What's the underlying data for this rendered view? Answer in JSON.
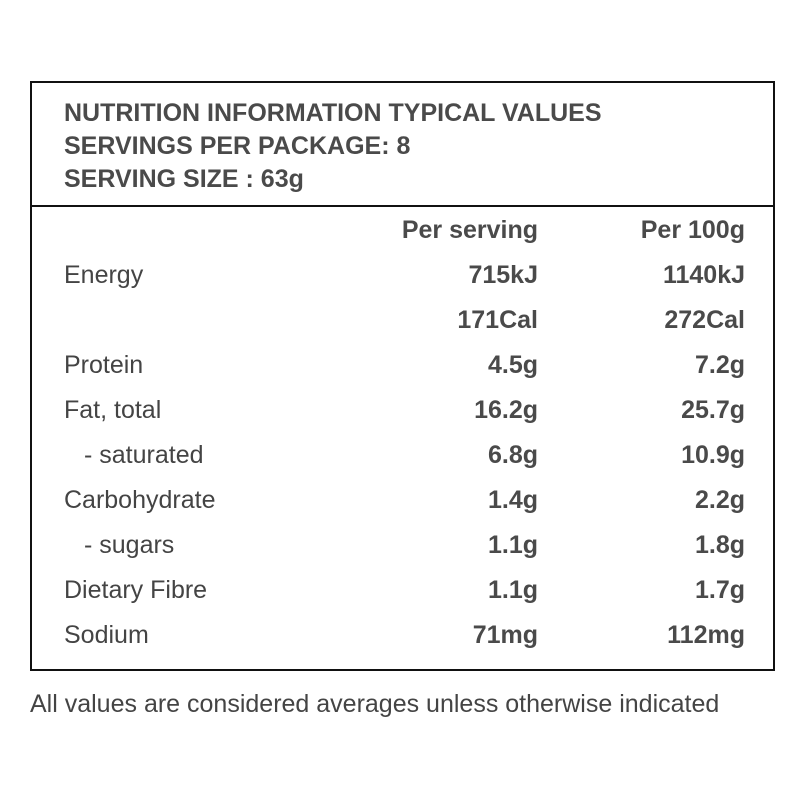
{
  "header": {
    "title": "NUTRITION INFORMATION TYPICAL VALUES",
    "servings": "SERVINGS PER PACKAGE: 8",
    "serving_size": "SERVING SIZE : 63g"
  },
  "columns": {
    "per_serving": "Per serving",
    "per_100g": "Per 100g"
  },
  "rows": [
    {
      "label": "Energy",
      "per_serving": "715kJ",
      "per_100g": "1140kJ"
    },
    {
      "label": "",
      "per_serving": "171Cal",
      "per_100g": "272Cal"
    },
    {
      "label": "Protein",
      "per_serving": "4.5g",
      "per_100g": "7.2g"
    },
    {
      "label": "Fat, total",
      "per_serving": "16.2g",
      "per_100g": "25.7g"
    },
    {
      "label": "- saturated",
      "per_serving": "6.8g",
      "per_100g": "10.9g"
    },
    {
      "label": "Carbohydrate",
      "per_serving": "1.4g",
      "per_100g": "2.2g"
    },
    {
      "label": "- sugars",
      "per_serving": "1.1g",
      "per_100g": "1.8g"
    },
    {
      "label": "Dietary Fibre",
      "per_serving": "1.1g",
      "per_100g": "1.7g"
    },
    {
      "label": "Sodium",
      "per_serving": "71mg",
      "per_100g": "112mg"
    }
  ],
  "footer": "All values are considered averages unless otherwise indicated"
}
